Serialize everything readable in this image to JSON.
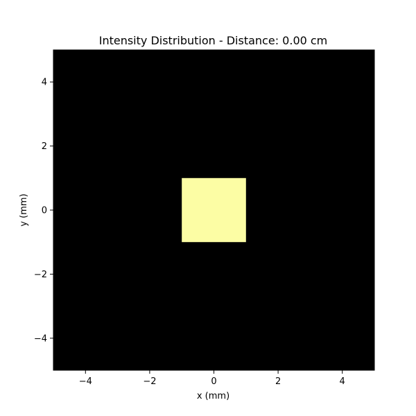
{
  "chart_data": {
    "type": "heatmap",
    "title": "Intensity Distribution - Distance: 0.00 cm",
    "xlabel": "x (mm)",
    "ylabel": "y (mm)",
    "xlim": [
      -5,
      5
    ],
    "ylim": [
      -5,
      5
    ],
    "xticks": [
      -4,
      -2,
      0,
      2,
      4
    ],
    "yticks": [
      -4,
      -2,
      0,
      2,
      4
    ],
    "xtick_labels": [
      "−4",
      "−2",
      "0",
      "2",
      "4"
    ],
    "ytick_labels": [
      "−4",
      "−2",
      "0",
      "2",
      "4"
    ],
    "grid": false,
    "background_color": "#000000",
    "regions": [
      {
        "x": [
          -1,
          1
        ],
        "y": [
          -1,
          1
        ],
        "color": "#fcfda4"
      }
    ]
  }
}
